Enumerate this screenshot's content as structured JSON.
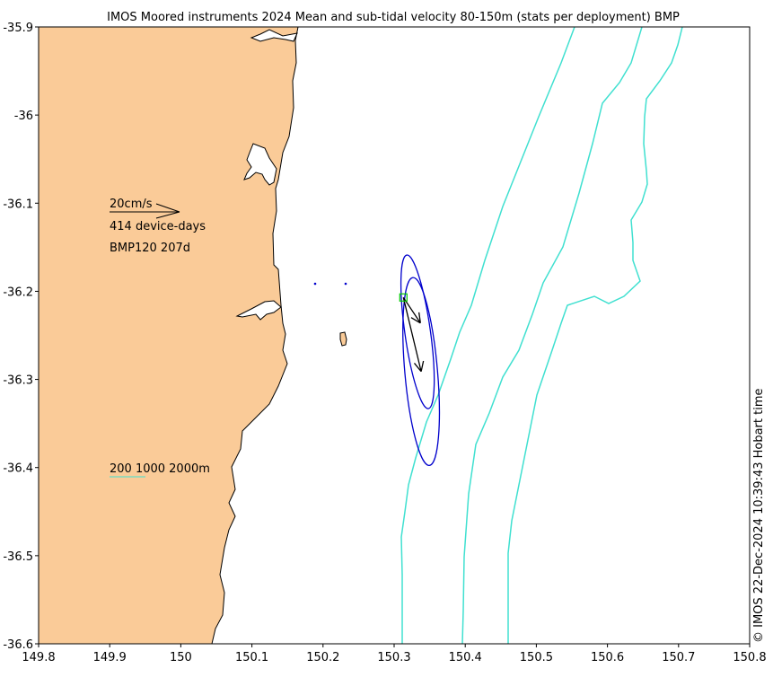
{
  "title": "IMOS Moored instruments 2024 Mean and sub-tidal velocity 80-150m (stats per deployment) BMP",
  "credit": "© IMOS 22-Dec-2024 10:39:43 Hobart time",
  "legend": {
    "scale_label": "20cm/s",
    "device_days_label": "414 device-days",
    "deployment_label": "BMP120 207d",
    "contour_label": "200 1000 2000m"
  },
  "axes": {
    "xlim": [
      149.8,
      150.8
    ],
    "ylim": [
      -36.6,
      -35.9
    ],
    "x_ticks": [
      "149.8",
      "149.9",
      "150",
      "150.1",
      "150.2",
      "150.3",
      "150.4",
      "150.5",
      "150.6",
      "150.7",
      "150.8"
    ],
    "y_ticks": [
      "-35.9",
      "-36",
      "-36.1",
      "-36.2",
      "-36.3",
      "-36.4",
      "-36.5",
      "-36.6"
    ]
  },
  "colors": {
    "land": "#FACB98",
    "coast": "#000000",
    "isobath": "#40E0D0",
    "ellipse": "#0000CC",
    "mooring": "#00CC00",
    "arrow": "#000000"
  },
  "moorings": [
    {
      "name": "BMP120",
      "lon": 150.313,
      "lat": -36.207
    }
  ],
  "velocity_vectors": [
    {
      "lon": 150.313,
      "lat": -36.207,
      "dlon": 0.024,
      "dlat": -0.029
    },
    {
      "lon": 150.313,
      "lat": -36.207,
      "dlon": 0.025,
      "dlat": -0.084
    }
  ],
  "variance_ellipses": [
    {
      "lon": 150.333,
      "lat": -36.246,
      "semi_lon": 0.018,
      "semi_lat": 0.088,
      "angle": 8
    },
    {
      "lon": 150.338,
      "lat": -36.291,
      "semi_lon": 0.023,
      "semi_lat": 0.107,
      "angle": 5
    }
  ]
}
